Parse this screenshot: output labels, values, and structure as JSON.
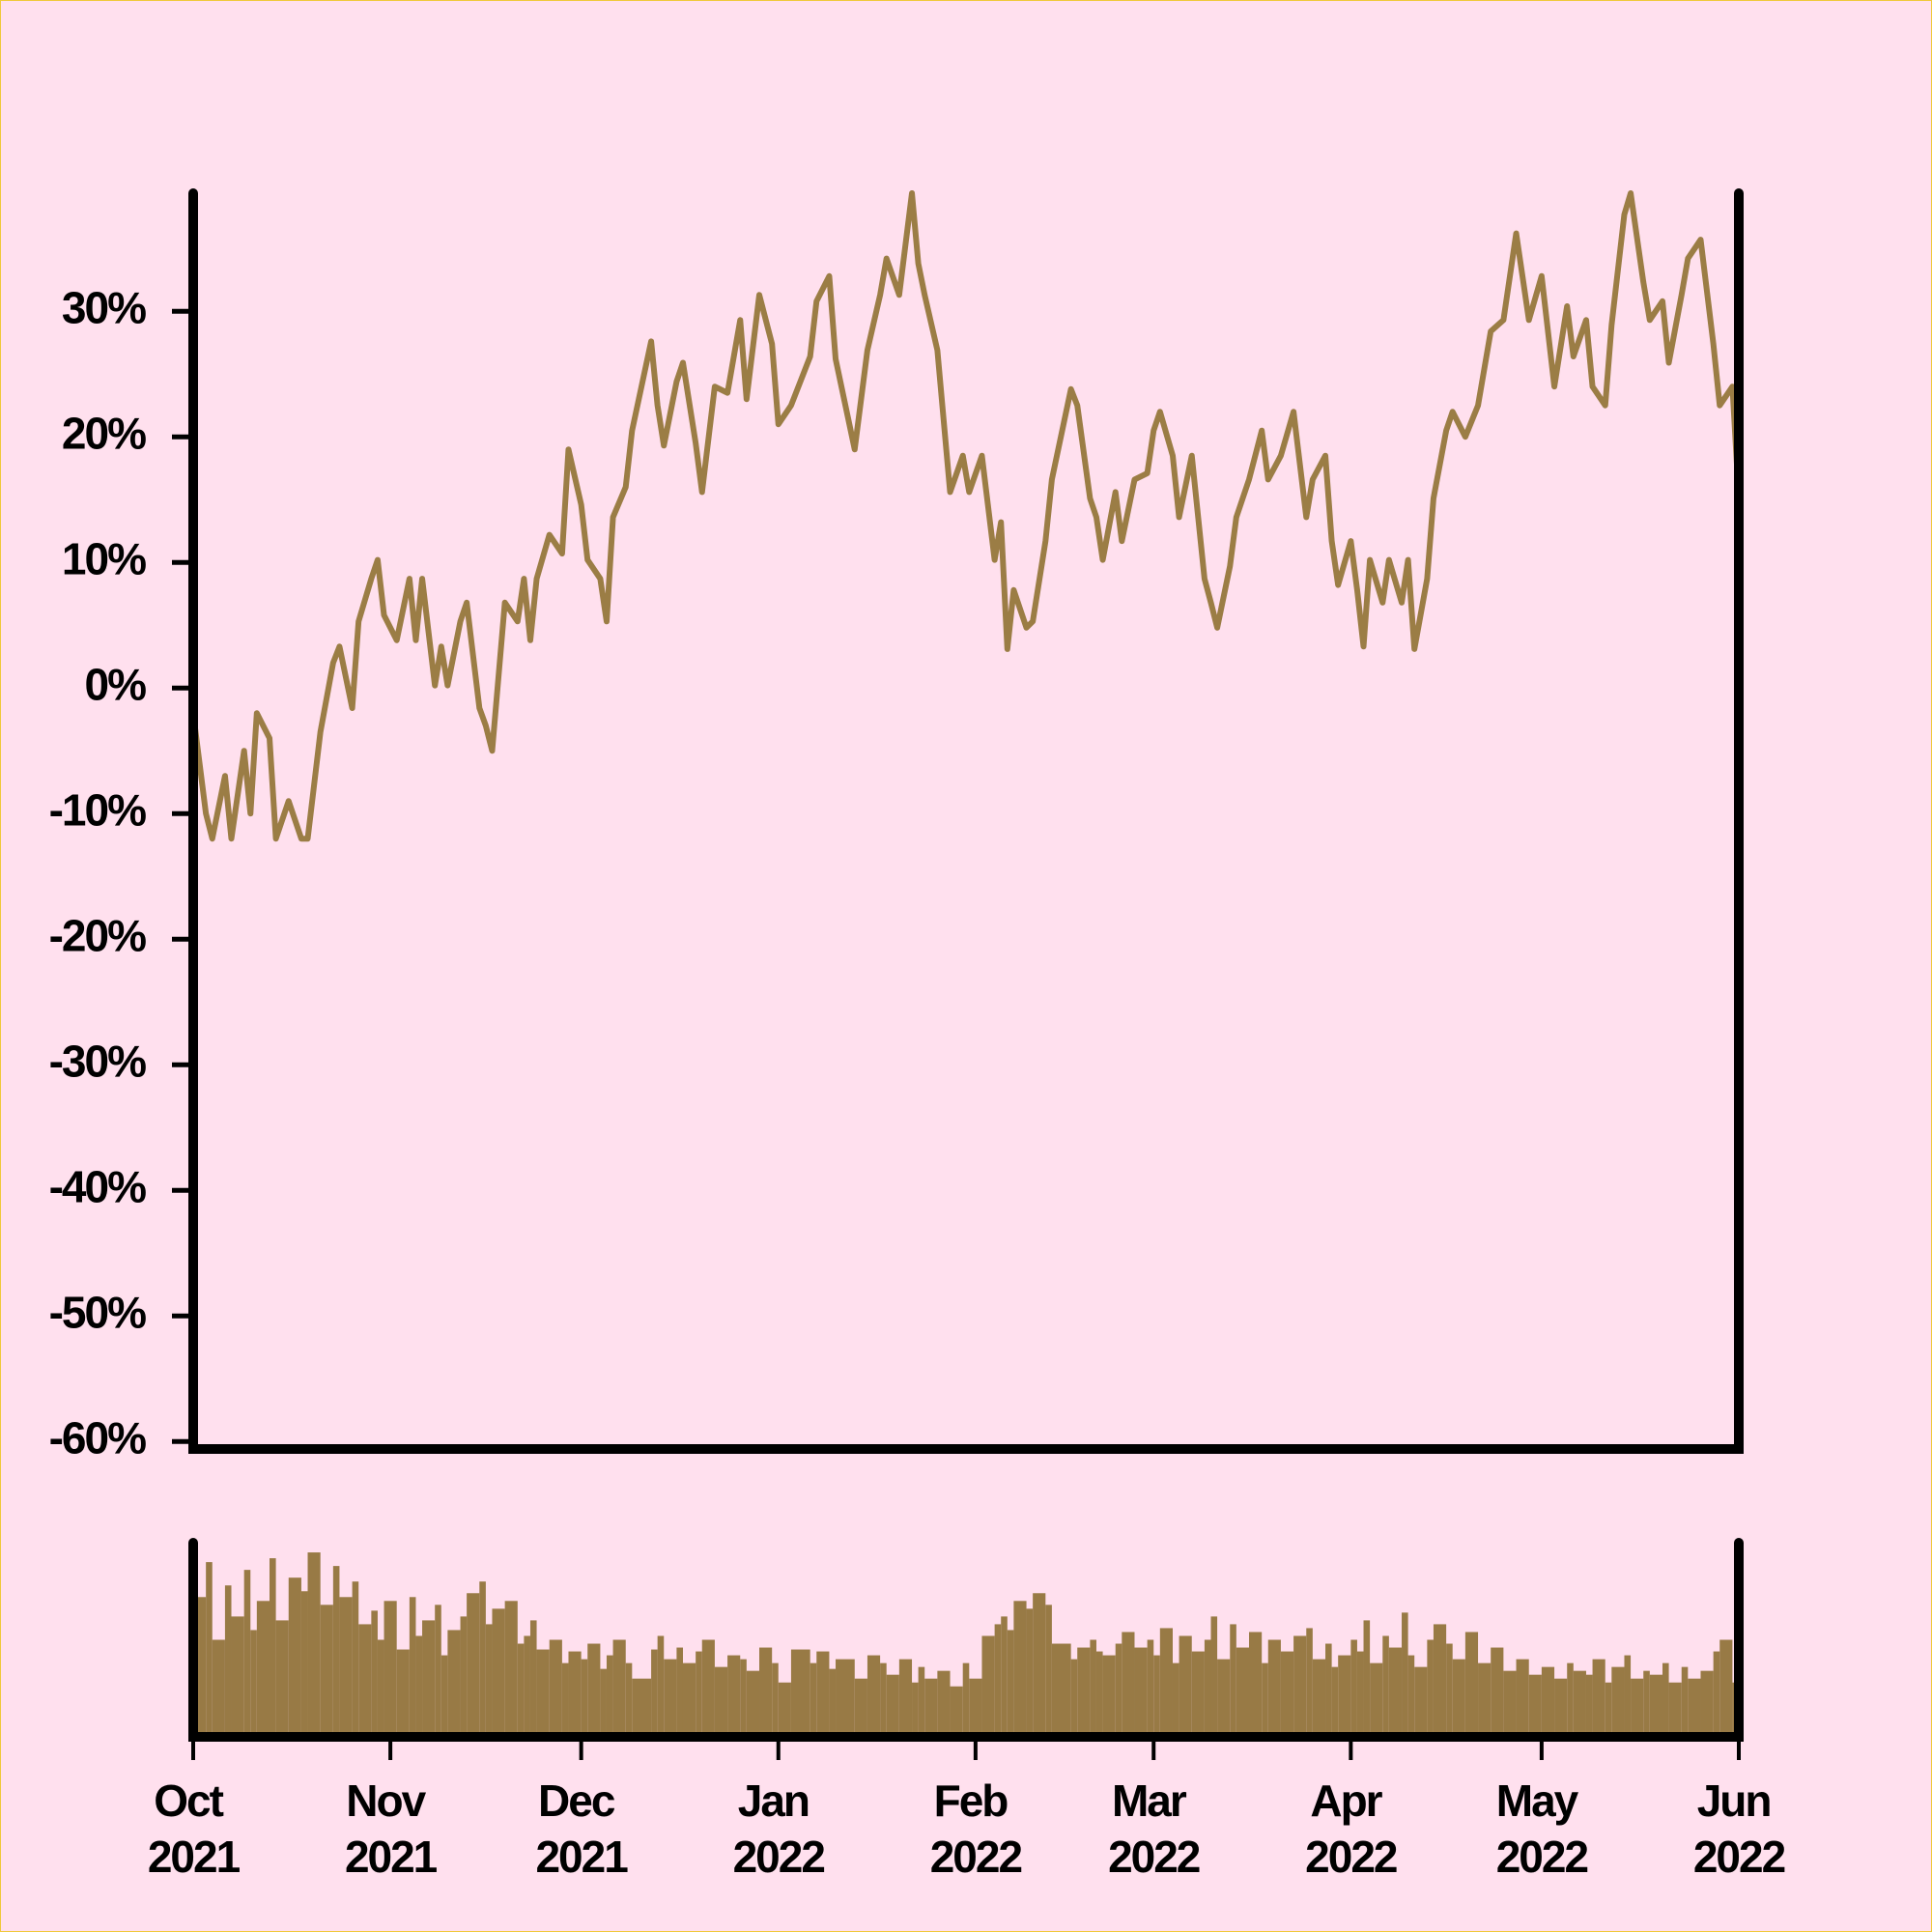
{
  "chart_data": [
    {
      "type": "line",
      "color": "#9b7d45",
      "x": [
        "2021-10-01",
        "2021-10-03",
        "2021-10-04",
        "2021-10-06",
        "2021-10-07",
        "2021-10-09",
        "2021-10-10",
        "2021-10-11",
        "2021-10-13",
        "2021-10-14",
        "2021-10-16",
        "2021-10-18",
        "2021-10-19",
        "2021-10-21",
        "2021-10-23",
        "2021-10-24",
        "2021-10-26",
        "2021-10-27",
        "2021-10-29",
        "2021-10-30",
        "2021-10-31",
        "2021-11-02",
        "2021-11-04",
        "2021-11-05",
        "2021-11-06",
        "2021-11-08",
        "2021-11-09",
        "2021-11-10",
        "2021-11-12",
        "2021-11-13",
        "2021-11-15",
        "2021-11-16",
        "2021-11-17",
        "2021-11-19",
        "2021-11-21",
        "2021-11-22",
        "2021-11-23",
        "2021-11-24",
        "2021-11-26",
        "2021-11-28",
        "2021-11-29",
        "2021-12-01",
        "2021-12-02",
        "2021-12-04",
        "2021-12-05",
        "2021-12-06",
        "2021-12-08",
        "2021-12-09",
        "2021-12-12",
        "2021-12-13",
        "2021-12-14",
        "2021-12-16",
        "2021-12-17",
        "2021-12-19",
        "2021-12-20",
        "2021-12-22",
        "2021-12-24",
        "2021-12-26",
        "2021-12-27",
        "2021-12-29",
        "2021-12-31",
        "2022-01-01",
        "2022-01-03",
        "2022-01-06",
        "2022-01-07",
        "2022-01-09",
        "2022-01-10",
        "2022-01-13",
        "2022-01-15",
        "2022-01-17",
        "2022-01-18",
        "2022-01-20",
        "2022-01-22",
        "2022-01-23",
        "2022-01-24",
        "2022-01-26",
        "2022-01-28",
        "2022-01-30",
        "2022-01-31",
        "2022-02-02",
        "2022-02-04",
        "2022-02-05",
        "2022-02-06",
        "2022-02-07",
        "2022-02-09",
        "2022-02-10",
        "2022-02-12",
        "2022-02-13",
        "2022-02-16",
        "2022-02-17",
        "2022-02-19",
        "2022-02-20",
        "2022-02-21",
        "2022-02-23",
        "2022-02-24",
        "2022-02-26",
        "2022-02-28",
        "2022-03-01",
        "2022-03-02",
        "2022-03-04",
        "2022-03-05",
        "2022-03-07",
        "2022-03-09",
        "2022-03-10",
        "2022-03-11",
        "2022-03-13",
        "2022-03-14",
        "2022-03-16",
        "2022-03-18",
        "2022-03-19",
        "2022-03-21",
        "2022-03-23",
        "2022-03-25",
        "2022-03-26",
        "2022-03-28",
        "2022-03-29",
        "2022-03-30",
        "2022-04-01",
        "2022-04-02",
        "2022-04-03",
        "2022-04-04",
        "2022-04-06",
        "2022-04-07",
        "2022-04-09",
        "2022-04-10",
        "2022-04-11",
        "2022-04-13",
        "2022-04-14",
        "2022-04-16",
        "2022-04-17",
        "2022-04-19",
        "2022-04-21",
        "2022-04-23",
        "2022-04-25",
        "2022-04-27",
        "2022-04-29",
        "2022-05-01",
        "2022-05-03",
        "2022-05-05",
        "2022-05-06",
        "2022-05-08",
        "2022-05-09",
        "2022-05-11",
        "2022-05-12",
        "2022-05-14",
        "2022-05-15",
        "2022-05-17",
        "2022-05-18",
        "2022-05-20",
        "2022-05-21",
        "2022-05-23",
        "2022-05-24",
        "2022-05-26",
        "2022-05-28",
        "2022-05-29",
        "2022-05-31",
        "2022-06-01"
      ],
      "values": [
        -2,
        -10,
        -12,
        -7,
        -12,
        -5,
        -10,
        -2,
        -4,
        -12,
        -9,
        -12,
        -12,
        -3.5,
        2,
        3.3,
        -1.6,
        5.3,
        8.7,
        10.2,
        5.8,
        3.8,
        8.7,
        3.8,
        8.7,
        0.2,
        3.3,
        0.2,
        5.3,
        6.8,
        -1.6,
        -3,
        -5,
        6.8,
        5.3,
        8.7,
        3.8,
        8.7,
        12.2,
        10.7,
        19,
        14.6,
        10.2,
        8.7,
        5.3,
        13.6,
        16,
        20.5,
        27.6,
        22.5,
        19.3,
        24.4,
        25.9,
        19.5,
        15.6,
        24,
        23.5,
        29.3,
        23,
        31.3,
        27.4,
        21,
        22.5,
        26.4,
        30.8,
        32.8,
        26.2,
        19,
        26.9,
        31.3,
        34.2,
        31.3,
        39.4,
        33.8,
        31.3,
        26.9,
        15.6,
        18.5,
        15.6,
        18.5,
        10.2,
        13.2,
        3.1,
        7.8,
        4.8,
        5.3,
        11.7,
        16.6,
        23.8,
        22.5,
        15.1,
        13.6,
        10.2,
        15.6,
        11.7,
        16.6,
        17.1,
        20.5,
        22,
        18.5,
        13.6,
        18.5,
        8.7,
        6.8,
        4.8,
        9.7,
        13.6,
        16.6,
        20.5,
        16.6,
        18.5,
        22,
        13.6,
        16.6,
        18.5,
        11.7,
        8.2,
        11.7,
        7.8,
        3.3,
        10.2,
        6.8,
        10.2,
        6.8,
        10.2,
        3.1,
        8.7,
        15.1,
        20.5,
        22,
        20,
        22.5,
        28.4,
        29.3,
        36.2,
        29.3,
        32.8,
        24,
        30.4,
        26.4,
        29.3,
        24,
        22.5,
        28.9,
        37.7,
        39.4,
        32.3,
        29.3,
        30.8,
        25.9,
        31.3,
        34.2,
        35.7,
        27.4,
        22.5,
        24,
        15.1
      ],
      "xlim": [
        "2021-10-01",
        "2022-06-01"
      ],
      "ylim": [
        -60.6,
        39.4
      ],
      "yticks": [
        {
          "value": -60,
          "label": "-60%"
        },
        {
          "value": -50,
          "label": "-50%"
        },
        {
          "value": -40,
          "label": "-40%"
        },
        {
          "value": -30,
          "label": "-30%"
        },
        {
          "value": -20,
          "label": "-20%"
        },
        {
          "value": -10,
          "label": "-10%"
        },
        {
          "value": 0,
          "label": "0%"
        },
        {
          "value": 10,
          "label": "10%"
        },
        {
          "value": 20,
          "label": "20%"
        },
        {
          "value": 30,
          "label": "30%"
        }
      ]
    },
    {
      "type": "bar",
      "color": "#987a45",
      "x": [
        "2021-10-01",
        "2021-10-03",
        "2021-10-04",
        "2021-10-06",
        "2021-10-07",
        "2021-10-09",
        "2021-10-10",
        "2021-10-11",
        "2021-10-13",
        "2021-10-14",
        "2021-10-16",
        "2021-10-18",
        "2021-10-19",
        "2021-10-21",
        "2021-10-23",
        "2021-10-24",
        "2021-10-26",
        "2021-10-27",
        "2021-10-29",
        "2021-10-30",
        "2021-10-31",
        "2021-11-02",
        "2021-11-04",
        "2021-11-05",
        "2021-11-06",
        "2021-11-08",
        "2021-11-09",
        "2021-11-10",
        "2021-11-12",
        "2021-11-13",
        "2021-11-15",
        "2021-11-16",
        "2021-11-17",
        "2021-11-19",
        "2021-11-21",
        "2021-11-22",
        "2021-11-23",
        "2021-11-24",
        "2021-11-26",
        "2021-11-28",
        "2021-11-29",
        "2021-12-01",
        "2021-12-02",
        "2021-12-04",
        "2021-12-05",
        "2021-12-06",
        "2021-12-08",
        "2021-12-09",
        "2021-12-12",
        "2021-12-13",
        "2021-12-14",
        "2021-12-16",
        "2021-12-17",
        "2021-12-19",
        "2021-12-20",
        "2021-12-22",
        "2021-12-24",
        "2021-12-26",
        "2021-12-27",
        "2021-12-29",
        "2021-12-31",
        "2022-01-01",
        "2022-01-03",
        "2022-01-06",
        "2022-01-07",
        "2022-01-09",
        "2022-01-10",
        "2022-01-13",
        "2022-01-15",
        "2022-01-17",
        "2022-01-18",
        "2022-01-20",
        "2022-01-22",
        "2022-01-23",
        "2022-01-24",
        "2022-01-26",
        "2022-01-28",
        "2022-01-30",
        "2022-01-31",
        "2022-02-02",
        "2022-02-04",
        "2022-02-05",
        "2022-02-06",
        "2022-02-07",
        "2022-02-09",
        "2022-02-10",
        "2022-02-12",
        "2022-02-13",
        "2022-02-16",
        "2022-02-17",
        "2022-02-19",
        "2022-02-20",
        "2022-02-21",
        "2022-02-23",
        "2022-02-24",
        "2022-02-26",
        "2022-02-28",
        "2022-03-01",
        "2022-03-02",
        "2022-03-04",
        "2022-03-05",
        "2022-03-07",
        "2022-03-09",
        "2022-03-10",
        "2022-03-11",
        "2022-03-13",
        "2022-03-14",
        "2022-03-16",
        "2022-03-18",
        "2022-03-19",
        "2022-03-21",
        "2022-03-23",
        "2022-03-25",
        "2022-03-26",
        "2022-03-28",
        "2022-03-29",
        "2022-03-30",
        "2022-04-01",
        "2022-04-02",
        "2022-04-03",
        "2022-04-04",
        "2022-04-06",
        "2022-04-07",
        "2022-04-09",
        "2022-04-10",
        "2022-04-11",
        "2022-04-13",
        "2022-04-14",
        "2022-04-16",
        "2022-04-17",
        "2022-04-19",
        "2022-04-21",
        "2022-04-23",
        "2022-04-25",
        "2022-04-27",
        "2022-04-29",
        "2022-05-01",
        "2022-05-03",
        "2022-05-05",
        "2022-05-06",
        "2022-05-08",
        "2022-05-09",
        "2022-05-11",
        "2022-05-12",
        "2022-05-14",
        "2022-05-15",
        "2022-05-17",
        "2022-05-18",
        "2022-05-20",
        "2022-05-21",
        "2022-05-23",
        "2022-05-24",
        "2022-05-26",
        "2022-05-28",
        "2022-05-29",
        "2022-05-31",
        "2022-06-01"
      ],
      "values": [
        72,
        90,
        50,
        78,
        62,
        86,
        55,
        70,
        92,
        60,
        82,
        75,
        95,
        68,
        88,
        72,
        80,
        58,
        65,
        50,
        70,
        45,
        72,
        52,
        60,
        68,
        42,
        55,
        62,
        74,
        80,
        58,
        66,
        70,
        48,
        52,
        60,
        45,
        50,
        38,
        44,
        40,
        48,
        35,
        42,
        50,
        38,
        30,
        45,
        52,
        40,
        46,
        38,
        44,
        50,
        36,
        42,
        40,
        34,
        46,
        38,
        28,
        45,
        38,
        44,
        35,
        40,
        30,
        42,
        38,
        32,
        40,
        28,
        36,
        30,
        34,
        26,
        38,
        30,
        52,
        58,
        62,
        55,
        70,
        66,
        74,
        68,
        48,
        40,
        46,
        50,
        44,
        42,
        48,
        54,
        46,
        50,
        42,
        56,
        38,
        52,
        44,
        50,
        62,
        40,
        58,
        46,
        54,
        38,
        50,
        44,
        52,
        56,
        40,
        48,
        36,
        42,
        50,
        44,
        60,
        38,
        52,
        46,
        64,
        42,
        36,
        50,
        58,
        48,
        40,
        54,
        38,
        46,
        34,
        40,
        32,
        36,
        30,
        38,
        34,
        32,
        40,
        28,
        36,
        42,
        30,
        34,
        32,
        38,
        28,
        36,
        30,
        34,
        44,
        50,
        28,
        24
      ],
      "xlim": [
        "2021-10-01",
        "2022-06-01"
      ],
      "ylim": [
        0,
        100
      ],
      "xticks": [
        {
          "value": "2021-10-01",
          "label": "Oct 2021"
        },
        {
          "value": "2021-11-01",
          "label": "Nov 2021"
        },
        {
          "value": "2021-12-01",
          "label": "Dec 2021"
        },
        {
          "value": "2022-01-01",
          "label": "Jan 2022"
        },
        {
          "value": "2022-02-01",
          "label": "Feb 2022"
        },
        {
          "value": "2022-03-01",
          "label": "Mar 2022"
        },
        {
          "value": "2022-04-01",
          "label": "Apr 2022"
        },
        {
          "value": "2022-05-01",
          "label": "May 2022"
        },
        {
          "value": "2022-06-01",
          "label": "Jun 2022"
        }
      ]
    }
  ]
}
